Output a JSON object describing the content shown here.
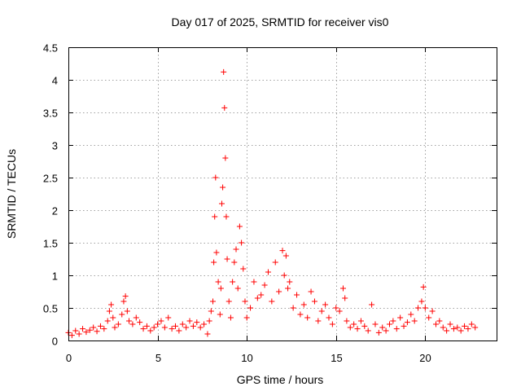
{
  "chart_data": {
    "type": "scatter",
    "title": "Day 017 of 2025, SRMTID for receiver vis0",
    "xlabel": "GPS time / hours",
    "ylabel": "SRMTID / TECUs",
    "xlim": [
      0,
      24
    ],
    "ylim": [
      0,
      4.5
    ],
    "xticks": [
      0,
      5,
      10,
      15,
      20
    ],
    "xtick_labels": [
      "0",
      "5",
      "10",
      "15",
      "20"
    ],
    "yticks": [
      0,
      0.5,
      1,
      1.5,
      2,
      2.5,
      3,
      3.5,
      4,
      4.5
    ],
    "ytick_labels": [
      "0",
      "0.5",
      "1",
      "1.5",
      "2",
      "2.5",
      "3",
      "3.5",
      "4",
      "4.5"
    ],
    "grid": true,
    "marker": "+",
    "color": "#ff0000",
    "series": [
      {
        "name": "SRMTID",
        "x": [
          0.0,
          0.2,
          0.4,
          0.6,
          0.8,
          1.0,
          1.2,
          1.4,
          1.6,
          1.8,
          2.0,
          2.2,
          2.3,
          2.4,
          2.5,
          2.6,
          2.8,
          3.0,
          3.1,
          3.2,
          3.3,
          3.4,
          3.6,
          3.8,
          4.0,
          4.2,
          4.4,
          4.6,
          4.8,
          5.0,
          5.2,
          5.4,
          5.6,
          5.8,
          6.0,
          6.2,
          6.4,
          6.6,
          6.8,
          7.0,
          7.2,
          7.4,
          7.6,
          7.8,
          7.9,
          8.0,
          8.1,
          8.15,
          8.2,
          8.25,
          8.3,
          8.4,
          8.5,
          8.55,
          8.6,
          8.65,
          8.7,
          8.75,
          8.8,
          8.85,
          8.9,
          9.0,
          9.1,
          9.2,
          9.3,
          9.4,
          9.5,
          9.6,
          9.7,
          9.8,
          9.9,
          10.0,
          10.2,
          10.4,
          10.6,
          10.8,
          11.0,
          11.2,
          11.4,
          11.6,
          11.8,
          12.0,
          12.1,
          12.2,
          12.3,
          12.4,
          12.6,
          12.8,
          13.0,
          13.2,
          13.4,
          13.6,
          13.8,
          14.0,
          14.2,
          14.4,
          14.6,
          14.8,
          15.0,
          15.2,
          15.4,
          15.5,
          15.6,
          15.8,
          16.0,
          16.2,
          16.4,
          16.6,
          16.8,
          17.0,
          17.2,
          17.4,
          17.6,
          17.8,
          18.0,
          18.2,
          18.4,
          18.6,
          18.8,
          19.0,
          19.2,
          19.4,
          19.6,
          19.8,
          19.9,
          20.0,
          20.2,
          20.4,
          20.6,
          20.8,
          21.0,
          21.2,
          21.4,
          21.6,
          21.8,
          22.0,
          22.2,
          22.4,
          22.6,
          22.8
        ],
        "y": [
          0.12,
          0.08,
          0.15,
          0.1,
          0.18,
          0.13,
          0.16,
          0.2,
          0.14,
          0.22,
          0.18,
          0.3,
          0.45,
          0.55,
          0.35,
          0.2,
          0.25,
          0.4,
          0.6,
          0.68,
          0.45,
          0.3,
          0.25,
          0.35,
          0.28,
          0.18,
          0.22,
          0.15,
          0.2,
          0.25,
          0.3,
          0.2,
          0.35,
          0.18,
          0.22,
          0.15,
          0.25,
          0.2,
          0.3,
          0.22,
          0.28,
          0.2,
          0.25,
          0.1,
          0.3,
          0.45,
          0.6,
          1.2,
          1.9,
          2.5,
          1.35,
          0.9,
          0.4,
          0.8,
          2.1,
          2.35,
          4.12,
          3.57,
          2.8,
          1.9,
          1.25,
          0.6,
          0.35,
          0.9,
          1.2,
          1.4,
          0.8,
          1.75,
          1.5,
          1.1,
          0.6,
          0.35,
          0.5,
          0.9,
          0.65,
          0.7,
          0.85,
          1.05,
          0.6,
          1.2,
          0.75,
          1.38,
          1.0,
          1.3,
          0.8,
          0.9,
          0.5,
          0.7,
          0.4,
          0.55,
          0.35,
          0.75,
          0.6,
          0.3,
          0.45,
          0.55,
          0.35,
          0.25,
          0.5,
          0.45,
          0.8,
          0.65,
          0.3,
          0.2,
          0.25,
          0.18,
          0.3,
          0.22,
          0.15,
          0.55,
          0.25,
          0.12,
          0.2,
          0.15,
          0.25,
          0.3,
          0.18,
          0.35,
          0.22,
          0.28,
          0.4,
          0.3,
          0.5,
          0.6,
          0.82,
          0.5,
          0.35,
          0.45,
          0.25,
          0.3,
          0.2,
          0.15,
          0.25,
          0.18,
          0.2,
          0.15,
          0.22,
          0.18,
          0.25,
          0.2
        ]
      }
    ]
  }
}
